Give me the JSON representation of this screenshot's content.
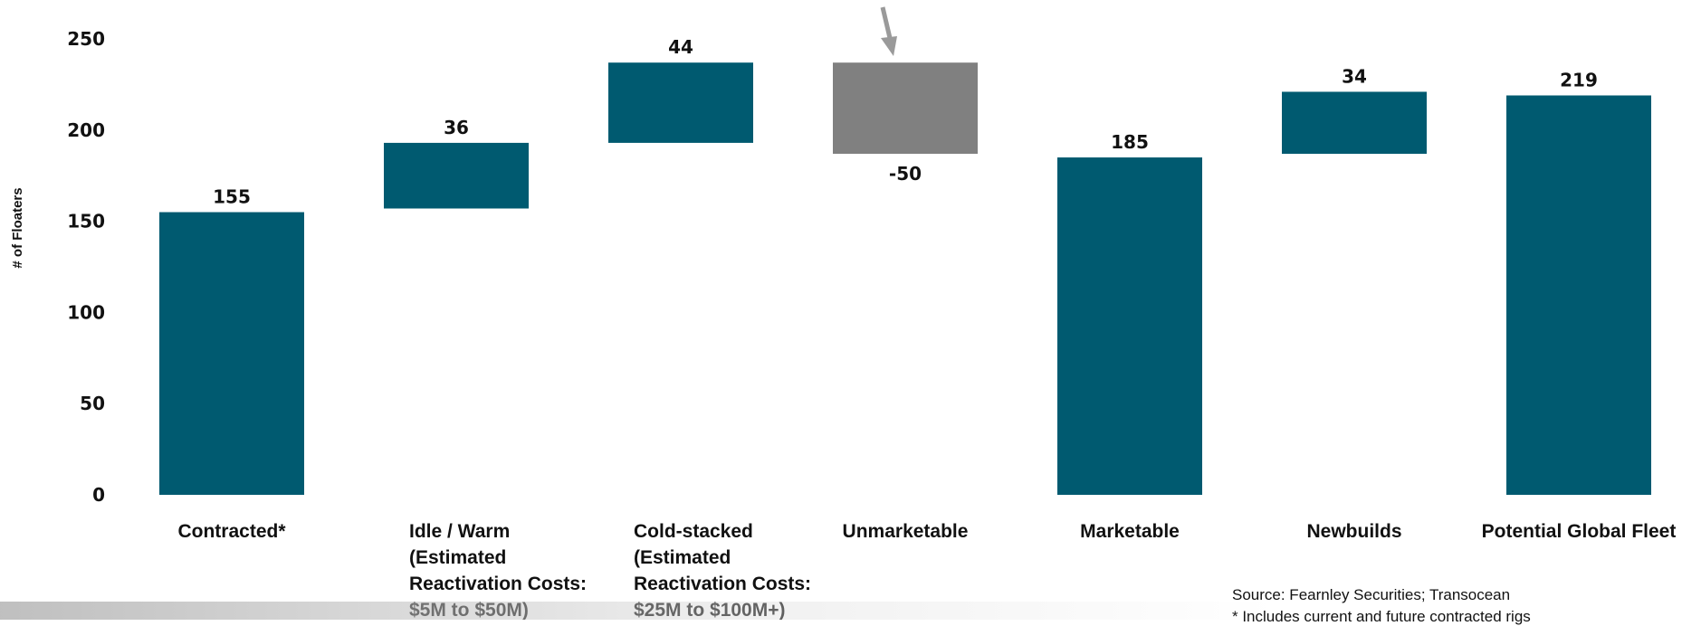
{
  "chart_data": {
    "type": "waterfall",
    "ylabel": "# of Floaters",
    "ylim": [
      0,
      250
    ],
    "yticks": [
      0,
      50,
      100,
      150,
      200,
      250
    ],
    "grid": false,
    "categories": [
      [
        "Contracted*"
      ],
      [
        "Idle / Warm",
        "(Estimated",
        "Reactivation Costs:",
        "$5M to $50M)"
      ],
      [
        "Cold-stacked",
        "(Estimated",
        "Reactivation Costs:",
        "$25M to $100M+)"
      ],
      [
        "Unmarketable"
      ],
      [
        "Marketable"
      ],
      [
        "Newbuilds"
      ],
      [
        "Potential Global Fleet"
      ]
    ],
    "bars": [
      {
        "label": "155",
        "base": 0,
        "value": 155,
        "kind": "total"
      },
      {
        "label": "36",
        "base": 157,
        "value": 36,
        "kind": "increase"
      },
      {
        "label": "44",
        "base": 193,
        "value": 44,
        "kind": "increase"
      },
      {
        "label": "-50",
        "base": 187,
        "value": 50,
        "kind": "decrease"
      },
      {
        "label": "185",
        "base": 0,
        "value": 185,
        "kind": "total"
      },
      {
        "label": "34",
        "base": 187,
        "value": 34,
        "kind": "increase"
      },
      {
        "label": "219",
        "base": 0,
        "value": 219,
        "kind": "total"
      }
    ],
    "colors": {
      "main": "#005a70",
      "decrease": "#808080",
      "arrow": "#9a9a9a"
    }
  },
  "notes": {
    "source": "Source: Fearnley Securities; Transocean",
    "footnote": "* Includes current and future contracted rigs"
  }
}
